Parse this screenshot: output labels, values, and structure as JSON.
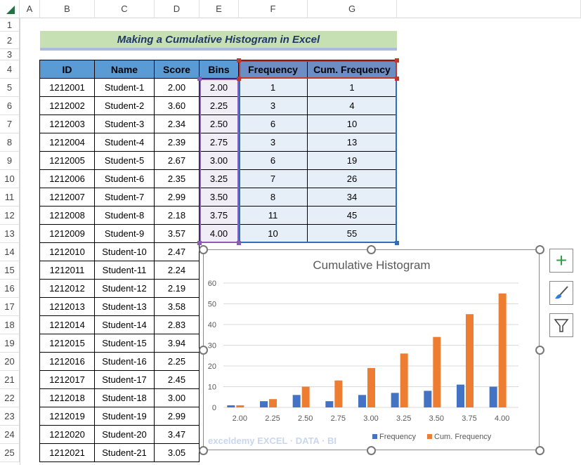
{
  "columns": [
    "A",
    "B",
    "C",
    "D",
    "E",
    "F",
    "G"
  ],
  "rows": [
    "1",
    "2",
    "3",
    "4",
    "5",
    "6",
    "7",
    "8",
    "9",
    "10",
    "11",
    "12",
    "13",
    "14",
    "15",
    "16",
    "17",
    "18",
    "19",
    "20",
    "21",
    "22",
    "23",
    "24",
    "25"
  ],
  "title": "Making a Cumulative Histogram in Excel",
  "headers": [
    "ID",
    "Name",
    "Score",
    "Bins",
    "Frequency",
    "Cum. Frequency"
  ],
  "students": [
    [
      "1212001",
      "Student-1",
      "2.00"
    ],
    [
      "1212002",
      "Student-2",
      "3.60"
    ],
    [
      "1212003",
      "Student-3",
      "2.34"
    ],
    [
      "1212004",
      "Student-4",
      "2.39"
    ],
    [
      "1212005",
      "Student-5",
      "2.67"
    ],
    [
      "1212006",
      "Student-6",
      "2.35"
    ],
    [
      "1212007",
      "Student-7",
      "2.99"
    ],
    [
      "1212008",
      "Student-8",
      "2.18"
    ],
    [
      "1212009",
      "Student-9",
      "3.57"
    ],
    [
      "1212010",
      "Student-10",
      "2.47"
    ],
    [
      "1212011",
      "Student-11",
      "2.24"
    ],
    [
      "1212012",
      "Student-12",
      "2.19"
    ],
    [
      "1212013",
      "Student-13",
      "3.58"
    ],
    [
      "1212014",
      "Student-14",
      "2.83"
    ],
    [
      "1212015",
      "Student-15",
      "3.94"
    ],
    [
      "1212016",
      "Student-16",
      "2.25"
    ],
    [
      "1212017",
      "Student-17",
      "2.45"
    ],
    [
      "1212018",
      "Student-18",
      "3.00"
    ],
    [
      "1212019",
      "Student-19",
      "2.99"
    ],
    [
      "1212020",
      "Student-20",
      "3.47"
    ],
    [
      "1212021",
      "Student-21",
      "3.05"
    ]
  ],
  "bins_table": [
    [
      "2.00",
      "1",
      "1"
    ],
    [
      "2.25",
      "3",
      "4"
    ],
    [
      "2.50",
      "6",
      "10"
    ],
    [
      "2.75",
      "3",
      "13"
    ],
    [
      "3.00",
      "6",
      "19"
    ],
    [
      "3.25",
      "7",
      "26"
    ],
    [
      "3.50",
      "8",
      "34"
    ],
    [
      "3.75",
      "11",
      "45"
    ],
    [
      "4.00",
      "10",
      "55"
    ]
  ],
  "chart_data": {
    "type": "bar",
    "title": "Cumulative Histogram",
    "categories": [
      "2.00",
      "2.25",
      "2.50",
      "2.75",
      "3.00",
      "3.25",
      "3.50",
      "3.75",
      "4.00"
    ],
    "series": [
      {
        "name": "Frequency",
        "color": "#4472C4",
        "values": [
          1,
          3,
          6,
          3,
          6,
          7,
          8,
          11,
          10
        ]
      },
      {
        "name": "Cum. Frequency",
        "color": "#ED7D31",
        "values": [
          1,
          4,
          10,
          13,
          19,
          26,
          34,
          45,
          55
        ]
      }
    ],
    "yticks": [
      "0",
      "10",
      "20",
      "30",
      "40",
      "50",
      "60"
    ],
    "ylim": [
      0,
      60
    ],
    "grid": true,
    "legend": "bottom"
  },
  "watermark": "exceldemy EXCEL · DATA · BI",
  "chart_buttons": [
    "chart-elements",
    "chart-styles",
    "chart-filters"
  ]
}
